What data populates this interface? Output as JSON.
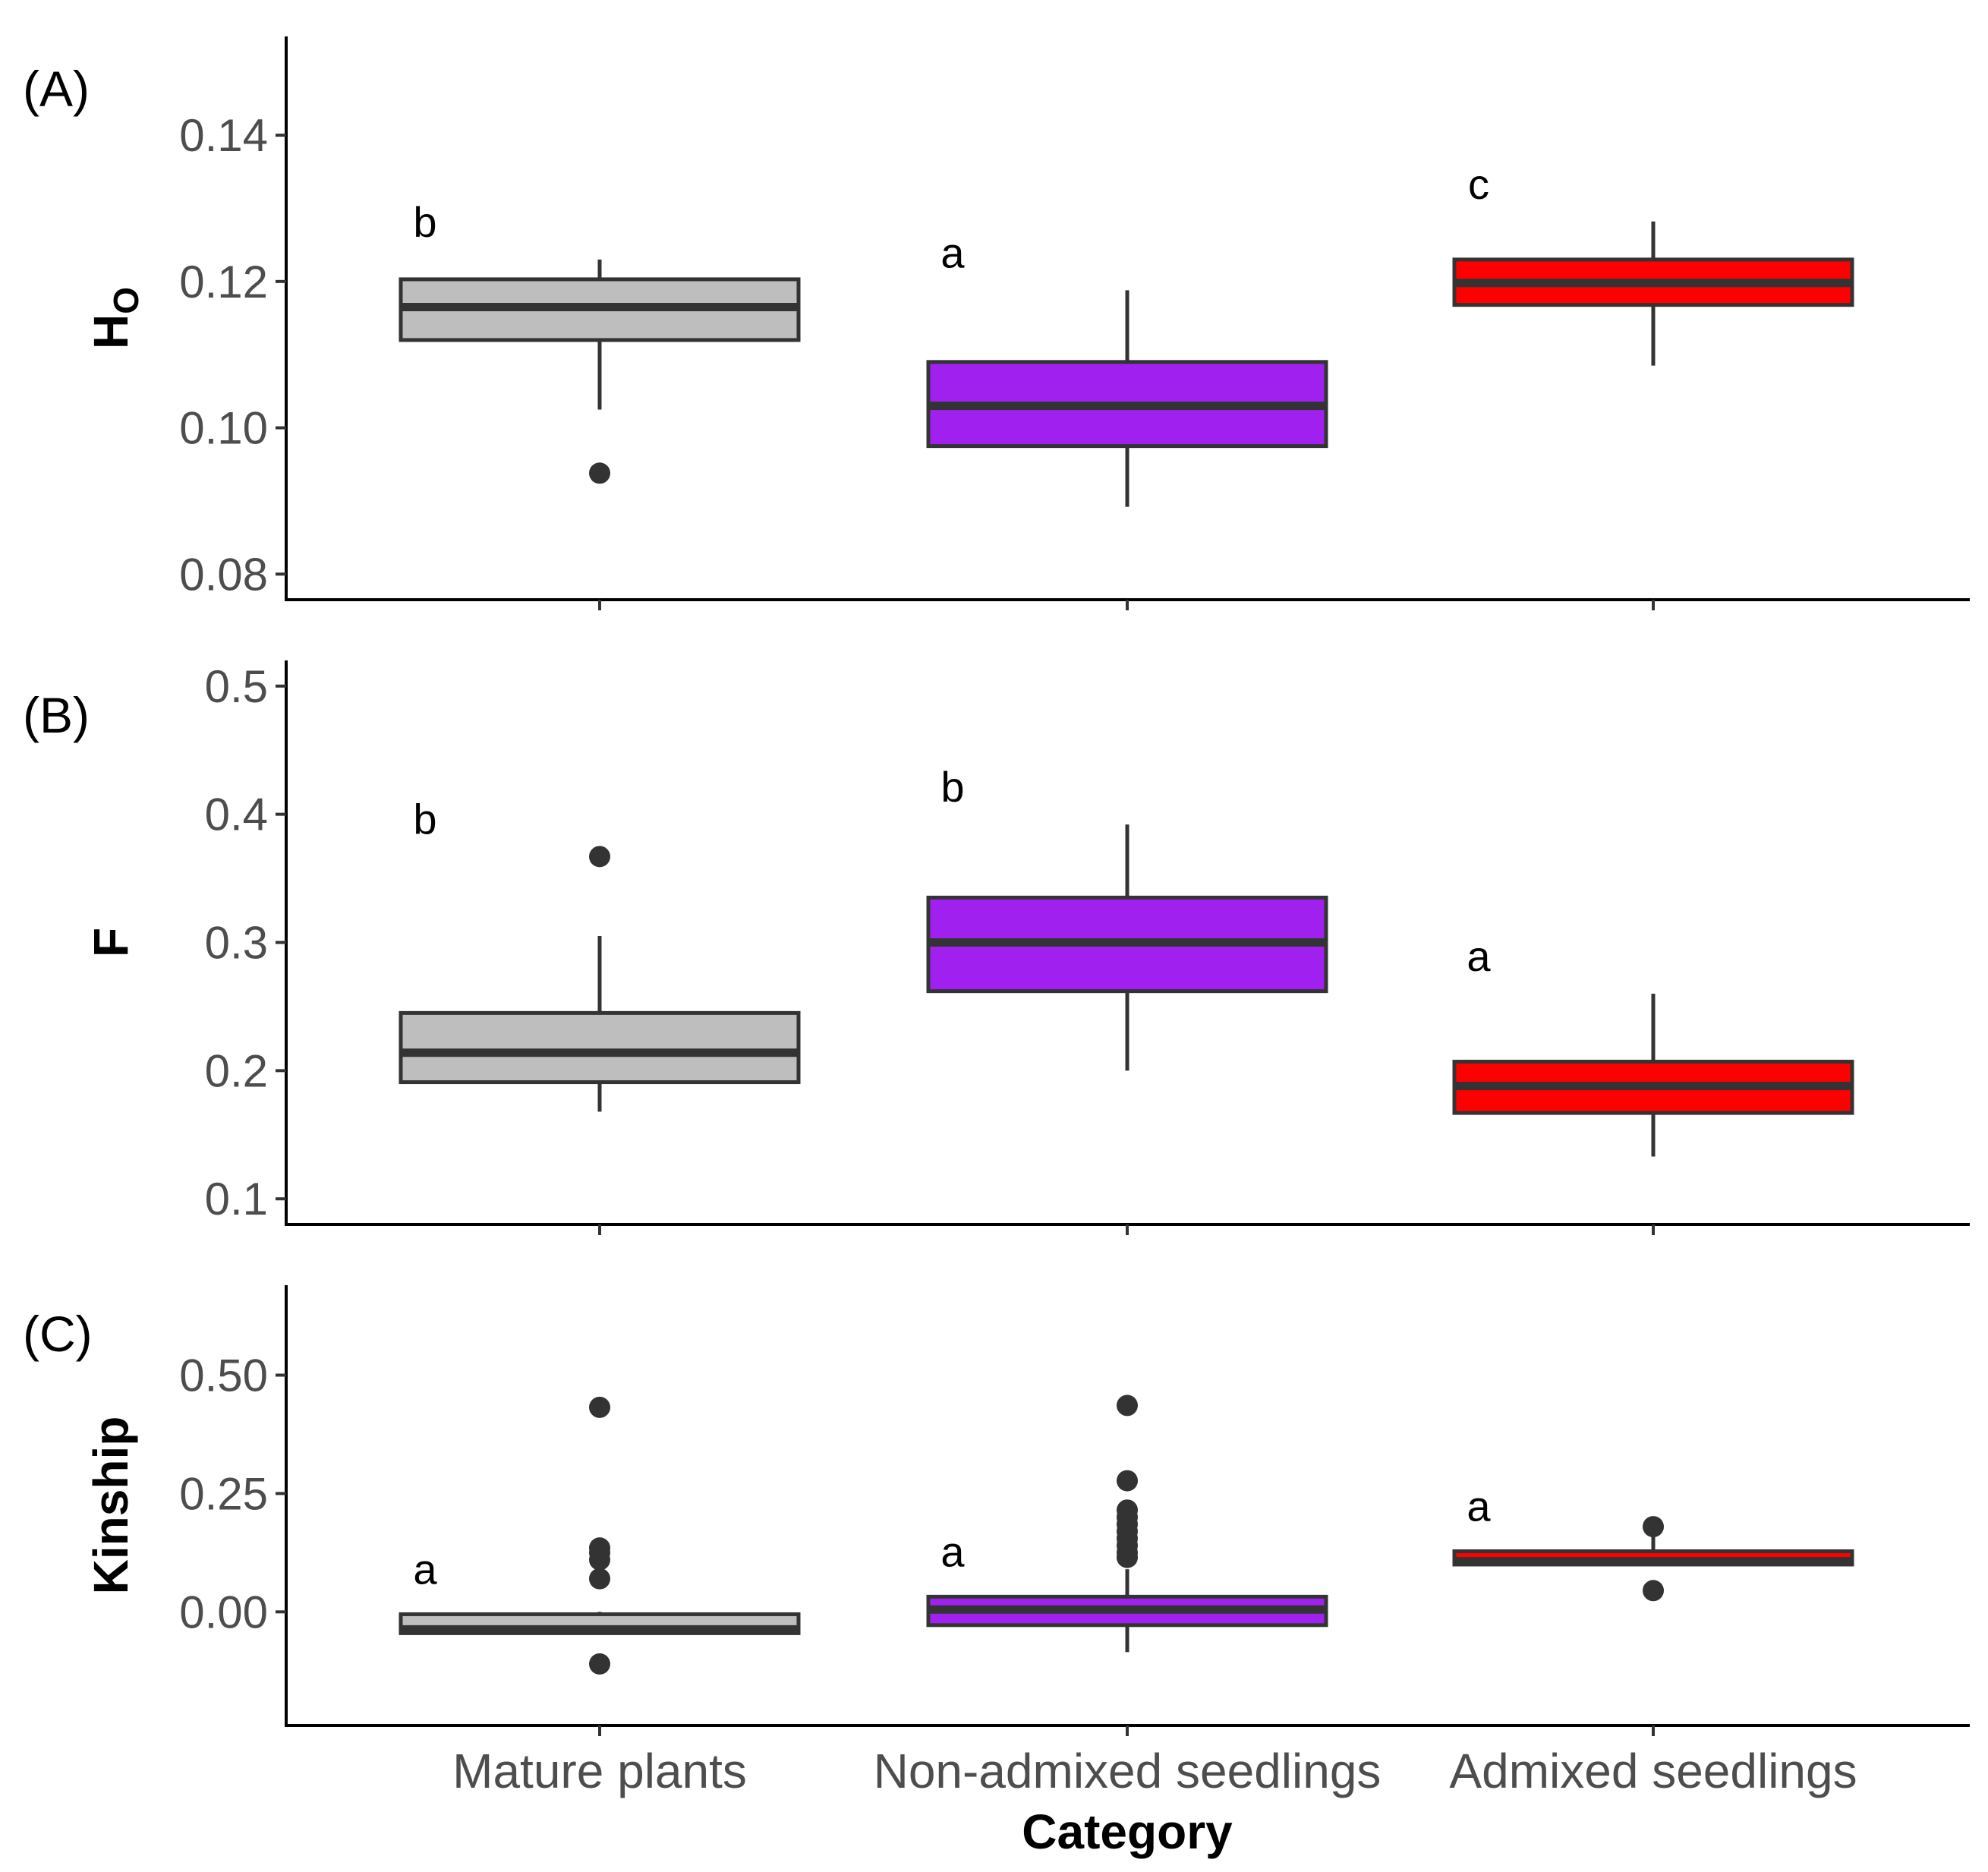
{
  "chart_data": {
    "type": "boxplot",
    "xlabel": "Category",
    "categories": [
      "Mature plants",
      "Non-admixed seedlings",
      "Admixed seedlings"
    ],
    "colors": [
      "#bebebe",
      "#a020f0",
      "#ff0000"
    ],
    "outline_color": "#333333",
    "panels": [
      {
        "tag": "(A)",
        "ylabel_main": "H",
        "ylabel_sub": "O",
        "ylim": [
          0.0765,
          0.1535
        ],
        "ticks": [
          0.08,
          0.1,
          0.12,
          0.14
        ],
        "tick_labels": [
          "0.08",
          "0.10",
          "0.12",
          "0.14"
        ],
        "boxes": [
          {
            "min": 0.1025,
            "q1": 0.112,
            "median": 0.1165,
            "q3": 0.1203,
            "max": 0.123,
            "outliers": [
              0.0938
            ],
            "letter": "b"
          },
          {
            "min": 0.0892,
            "q1": 0.0975,
            "median": 0.103,
            "q3": 0.109,
            "max": 0.1188,
            "outliers": [],
            "letter": "a"
          },
          {
            "min": 0.1085,
            "q1": 0.1168,
            "median": 0.1198,
            "q3": 0.123,
            "max": 0.1282,
            "outliers": [],
            "letter": "c"
          }
        ]
      },
      {
        "tag": "(B)",
        "ylabel_main": "F",
        "ylabel_sub": "",
        "ylim": [
          0.08,
          0.52
        ],
        "ticks": [
          0.1,
          0.2,
          0.3,
          0.4,
          0.5
        ],
        "tick_labels": [
          "0.1",
          "0.2",
          "0.3",
          "0.4",
          "0.5"
        ],
        "boxes": [
          {
            "min": 0.168,
            "q1": 0.191,
            "median": 0.214,
            "q3": 0.245,
            "max": 0.305,
            "outliers": [
              0.367
            ],
            "letter": "b"
          },
          {
            "min": 0.2,
            "q1": 0.262,
            "median": 0.3,
            "q3": 0.335,
            "max": 0.392,
            "outliers": [],
            "letter": "b"
          },
          {
            "min": 0.133,
            "q1": 0.167,
            "median": 0.188,
            "q3": 0.207,
            "max": 0.26,
            "outliers": [],
            "letter": "a"
          }
        ]
      },
      {
        "tag": "(C)",
        "ylabel_main": "Kinship",
        "ylabel_sub": "",
        "ylim": [
          -0.24,
          0.69
        ],
        "ticks": [
          0.0,
          0.25,
          0.5
        ],
        "tick_labels": [
          "0.00",
          "0.25",
          "0.50"
        ],
        "boxes": [
          {
            "min": -0.045,
            "q1": -0.045,
            "median": -0.037,
            "q3": -0.005,
            "max": 0.0,
            "outliers": [
              0.432,
              0.135,
              0.125,
              0.11,
              0.07,
              -0.11
            ],
            "letter": "a"
          },
          {
            "min": -0.085,
            "q1": -0.028,
            "median": 0.005,
            "q3": 0.032,
            "max": 0.09,
            "outliers": [
              0.436,
              0.277,
              0.215,
              0.2,
              0.185,
              0.17,
              0.155,
              0.14,
              0.125,
              0.115
            ],
            "letter": "a"
          },
          {
            "min": 0.1,
            "q1": 0.1,
            "median": 0.107,
            "q3": 0.128,
            "max": 0.16,
            "outliers": [
              0.18,
              0.045
            ],
            "letter": "a"
          }
        ]
      }
    ]
  }
}
